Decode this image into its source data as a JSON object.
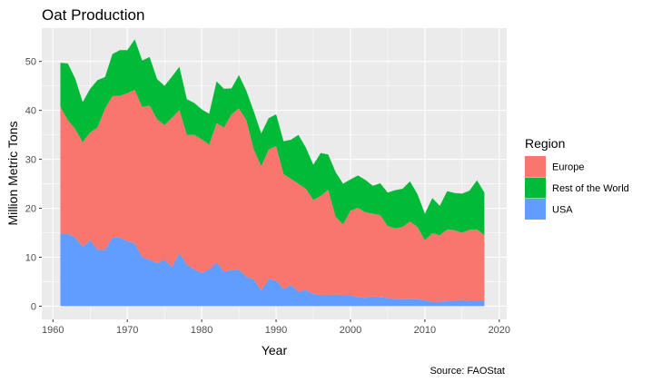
{
  "chart_data": {
    "type": "area",
    "stacked": true,
    "title": "Oat Production",
    "xlabel": "Year",
    "ylabel": "Million Metric Tons",
    "caption": "Source: FAOStat",
    "xlim": [
      1958.5,
      2021
    ],
    "ylim": [
      -2.7,
      56.8
    ],
    "xticks": [
      1960,
      1970,
      1980,
      1990,
      2000,
      2010,
      2020
    ],
    "yticks": [
      0,
      10,
      20,
      30,
      40,
      50
    ],
    "grid": true,
    "legend": {
      "title": "Region",
      "placement": "right"
    },
    "x": [
      1961,
      1962,
      1963,
      1964,
      1965,
      1966,
      1967,
      1968,
      1969,
      1970,
      1971,
      1972,
      1973,
      1974,
      1975,
      1976,
      1977,
      1978,
      1979,
      1980,
      1981,
      1982,
      1983,
      1984,
      1985,
      1986,
      1987,
      1988,
      1989,
      1990,
      1991,
      1992,
      1993,
      1994,
      1995,
      1996,
      1997,
      1998,
      1999,
      2000,
      2001,
      2002,
      2003,
      2004,
      2005,
      2006,
      2007,
      2008,
      2009,
      2010,
      2011,
      2012,
      2013,
      2014,
      2015,
      2016,
      2017,
      2018
    ],
    "series": [
      {
        "name": "USA",
        "color": "#619CFF",
        "values": [
          14.8,
          14.8,
          14.0,
          12.2,
          13.5,
          11.5,
          11.5,
          14.0,
          14.0,
          13.3,
          12.8,
          10.0,
          9.5,
          8.8,
          9.5,
          8.0,
          10.8,
          8.5,
          7.5,
          6.8,
          7.5,
          9.0,
          7.0,
          7.4,
          7.5,
          6.0,
          5.5,
          3.2,
          5.5,
          5.3,
          3.5,
          4.3,
          3.0,
          3.3,
          2.5,
          2.3,
          2.3,
          2.4,
          2.2,
          2.2,
          1.8,
          1.7,
          2.0,
          1.8,
          1.7,
          1.4,
          1.4,
          1.4,
          1.4,
          1.2,
          0.9,
          0.9,
          1.0,
          1.0,
          1.3,
          1.0,
          1.0,
          1.0
        ]
      },
      {
        "name": "Europe",
        "color": "#F8766D",
        "values": [
          26.0,
          23.2,
          22.2,
          21.3,
          22.0,
          25.0,
          28.9,
          28.9,
          29.0,
          30.2,
          31.4,
          30.7,
          31.5,
          29.4,
          27.5,
          30.5,
          29.3,
          26.5,
          27.5,
          27.3,
          25.5,
          28.4,
          29.5,
          31.8,
          32.9,
          32.0,
          26.5,
          25.4,
          26.5,
          27.4,
          23.5,
          21.7,
          22.0,
          20.7,
          19.2,
          20.2,
          21.5,
          15.9,
          14.5,
          17.3,
          18.3,
          17.5,
          16.9,
          16.8,
          14.7,
          14.5,
          14.8,
          15.9,
          14.8,
          12.3,
          14.0,
          13.6,
          14.7,
          14.5,
          13.7,
          14.6,
          14.7,
          13.5
        ]
      },
      {
        "name": "Rest of the World",
        "color": "#00BA38",
        "values": [
          8.9,
          11.6,
          10.3,
          8.2,
          8.9,
          9.7,
          6.4,
          8.6,
          9.3,
          8.8,
          10.3,
          9.5,
          9.9,
          8.2,
          8.0,
          8.4,
          8.8,
          7.3,
          6.5,
          6.1,
          6.3,
          8.5,
          7.9,
          5.3,
          6.8,
          6.0,
          7.8,
          6.7,
          6.4,
          6.5,
          6.7,
          8.0,
          10.0,
          8.4,
          7.2,
          8.8,
          7.2,
          9.1,
          8.3,
          6.4,
          6.6,
          6.6,
          5.7,
          6.5,
          6.8,
          7.8,
          7.8,
          8.2,
          6.7,
          5.4,
          7.2,
          6.0,
          7.8,
          7.6,
          8.0,
          8.0,
          10.0,
          8.7
        ]
      }
    ],
    "legend_order": [
      "Europe",
      "Rest of the World",
      "USA"
    ]
  }
}
